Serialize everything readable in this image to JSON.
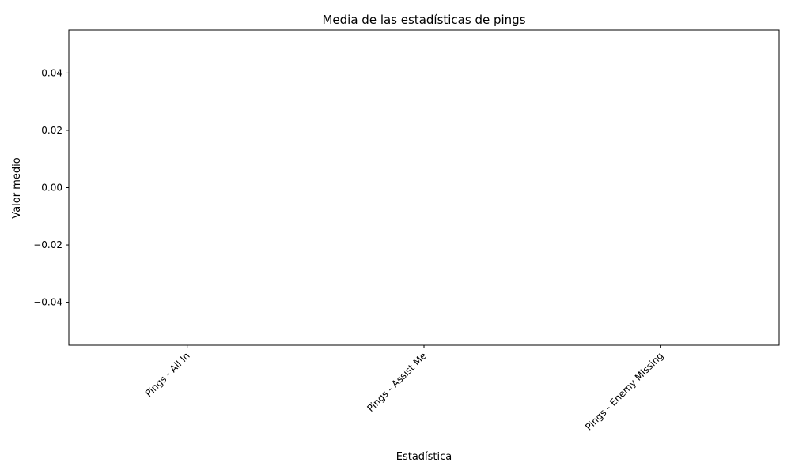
{
  "chart_data": {
    "type": "bar",
    "title": "Media de las estadísticas de pings",
    "xlabel": "Estadística",
    "ylabel": "Valor medio",
    "categories": [
      "Pings - All In",
      "Pings - Assist Me",
      "Pings - Enemy Missing"
    ],
    "values": [
      0,
      0,
      0
    ],
    "ylim": [
      -0.055,
      0.055
    ],
    "yticks": [
      -0.04,
      -0.02,
      0.0,
      0.02,
      0.04
    ],
    "ytick_labels": [
      "−0.04",
      "−0.02",
      "0.00",
      "0.02",
      "0.04"
    ],
    "grid": false,
    "legend": "none"
  }
}
